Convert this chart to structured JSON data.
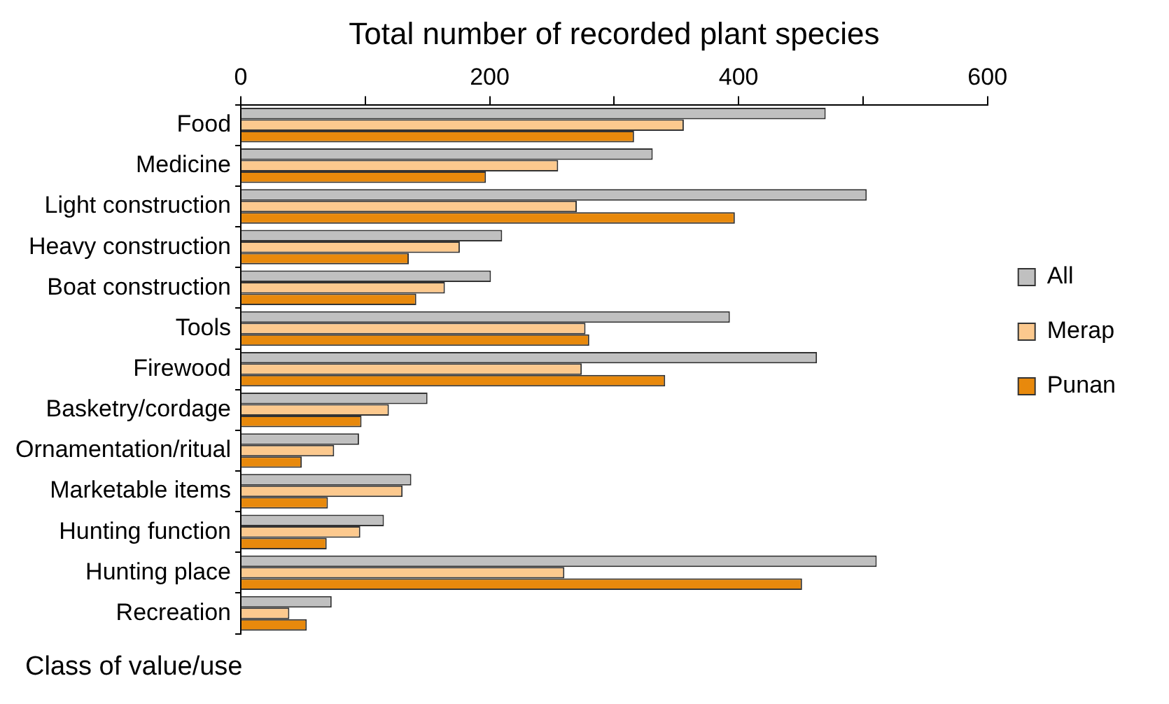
{
  "chart_data": {
    "type": "bar",
    "orientation": "horizontal",
    "xlabel": "Total number of recorded plant species",
    "ylabel": "Class of value/use",
    "categories": [
      "Food",
      "Medicine",
      "Light construction",
      "Heavy construction",
      "Boat construction",
      "Tools",
      "Firewood",
      "Basketry/cordage",
      "Ornamentation/ritual",
      "Marketable items",
      "Hunting function",
      "Hunting place",
      "Recreation"
    ],
    "series": [
      {
        "name": "All",
        "color": "#c0c0c0",
        "values": [
          470,
          331,
          503,
          210,
          201,
          393,
          463,
          150,
          95,
          137,
          115,
          511,
          73
        ]
      },
      {
        "name": "Merap",
        "color": "#fcc98e",
        "values": [
          356,
          255,
          270,
          176,
          164,
          277,
          274,
          119,
          75,
          130,
          96,
          260,
          39
        ]
      },
      {
        "name": "Punan",
        "color": "#e8890c",
        "values": [
          316,
          197,
          397,
          135,
          141,
          280,
          341,
          97,
          49,
          70,
          69,
          451,
          53
        ]
      }
    ],
    "xlim": [
      0,
      600
    ],
    "xticks": [
      0,
      {
        "value": 100,
        "label": null
      },
      200,
      {
        "value": 300,
        "label": null
      },
      400,
      {
        "value": 500,
        "label": null
      },
      600
    ],
    "grid": false,
    "legend": "right"
  }
}
